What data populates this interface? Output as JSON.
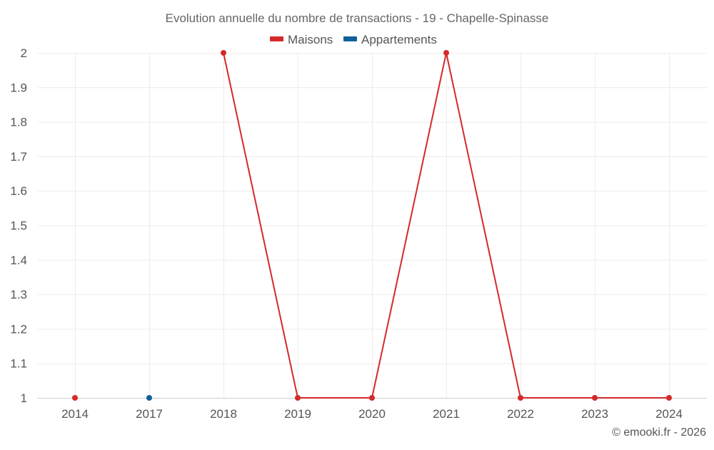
{
  "chart_data": {
    "type": "line",
    "title": "Evolution annuelle du nombre de transactions - 19 - Chapelle-Spinasse",
    "categories": [
      "2014",
      "2017",
      "2018",
      "2019",
      "2020",
      "2021",
      "2022",
      "2023",
      "2024"
    ],
    "y_ticks": [
      "1",
      "1.1",
      "1.2",
      "1.3",
      "1.4",
      "1.5",
      "1.6",
      "1.7",
      "1.8",
      "1.9",
      "2"
    ],
    "ylim": [
      1,
      2
    ],
    "xlabel": "",
    "ylabel": "",
    "grid": true,
    "legend_position": "top-center",
    "series": [
      {
        "name": "Maisons",
        "color": "#d42a2a",
        "values": [
          1,
          null,
          2,
          1,
          1,
          2,
          1,
          1,
          1
        ]
      },
      {
        "name": "Appartements",
        "color": "#0e6298",
        "values": [
          null,
          1,
          null,
          null,
          null,
          null,
          null,
          null,
          null
        ]
      }
    ]
  },
  "credit": "© emooki.fr - 2026"
}
